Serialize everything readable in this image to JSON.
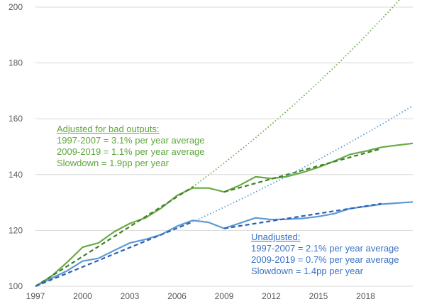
{
  "chart_data": {
    "type": "line",
    "title": "",
    "xlabel": "",
    "ylabel": "",
    "xlim": [
      1997,
      2021
    ],
    "ylim": [
      100,
      200
    ],
    "yticks": [
      100,
      120,
      140,
      160,
      180,
      200
    ],
    "xticks": [
      1997,
      2000,
      2003,
      2006,
      2009,
      2012,
      2015,
      2018
    ],
    "grid": true,
    "colors": {
      "adjusted": "#6aab45",
      "adjusted_trend": "#3f7f2b",
      "unadjusted": "#5b9bd5",
      "unadjusted_trend": "#2f5fb3"
    },
    "series": [
      {
        "key": "adjusted",
        "style": "solid",
        "x": [
          1997,
          1998,
          1999,
          2000,
          2001,
          2002,
          2003,
          2004,
          2005,
          2006,
          2007,
          2008,
          2009,
          2010,
          2011,
          2012,
          2013,
          2014,
          2015,
          2016,
          2017,
          2018,
          2019,
          2020,
          2021
        ],
        "y": [
          100,
          103.5,
          108.5,
          114,
          115.5,
          119.5,
          122.5,
          124.5,
          128,
          132.5,
          135.2,
          135.2,
          133.8,
          136.2,
          139.2,
          138.6,
          139.3,
          140.8,
          142.6,
          144.8,
          147.2,
          148.4,
          149.8,
          150.5,
          151.2
        ]
      },
      {
        "key": "unadjusted",
        "style": "solid",
        "x": [
          1997,
          1998,
          1999,
          2000,
          2001,
          2002,
          2003,
          2004,
          2005,
          2006,
          2007,
          2008,
          2009,
          2010,
          2011,
          2012,
          2013,
          2014,
          2015,
          2016,
          2017,
          2018,
          2019,
          2020,
          2021
        ],
        "y": [
          100,
          102.8,
          105.5,
          109,
          110,
          112.8,
          115.5,
          116.8,
          118.5,
          121.5,
          123.6,
          122.9,
          120.7,
          122.6,
          124.5,
          123.9,
          124,
          124.3,
          125,
          126,
          127.8,
          128.6,
          129.4,
          129.8,
          130.2
        ]
      },
      {
        "key": "adjusted_trend",
        "style": "dashed",
        "x": [
          1997,
          2007
        ],
        "y": [
          100,
          135.6
        ]
      },
      {
        "key": "adjusted_trend",
        "style": "dashed",
        "x": [
          2009,
          2019
        ],
        "y": [
          133.8,
          149.3
        ]
      },
      {
        "key": "unadjusted_trend",
        "style": "dashed",
        "x": [
          1997,
          2007
        ],
        "y": [
          100,
          123.1
        ]
      },
      {
        "key": "unadjusted_trend",
        "style": "dashed",
        "x": [
          2009,
          2019
        ],
        "y": [
          120.7,
          129.6
        ]
      },
      {
        "key": "adjusted",
        "style": "dotted",
        "projection": {
          "from": 2007,
          "to": 2021,
          "base": 135.6,
          "rate": 0.031
        }
      },
      {
        "key": "unadjusted",
        "style": "dotted",
        "projection": {
          "from": 2007,
          "to": 2021,
          "base": 123.1,
          "rate": 0.021
        }
      }
    ],
    "annotations": {
      "adjusted": {
        "heading": "Adjusted for bad outputs:",
        "lines": [
          "1997-2007 = 3.1% per year average",
          "2009-2019 = 1.1% per year average",
          "Slowdown = 1.9pp per year"
        ]
      },
      "unadjusted": {
        "heading": "Unadjusted:",
        "lines": [
          "1997-2007 = 2.1% per year average",
          "2009-2019 = 0.7% per year average",
          "Slowdown = 1.4pp per year"
        ]
      }
    }
  }
}
